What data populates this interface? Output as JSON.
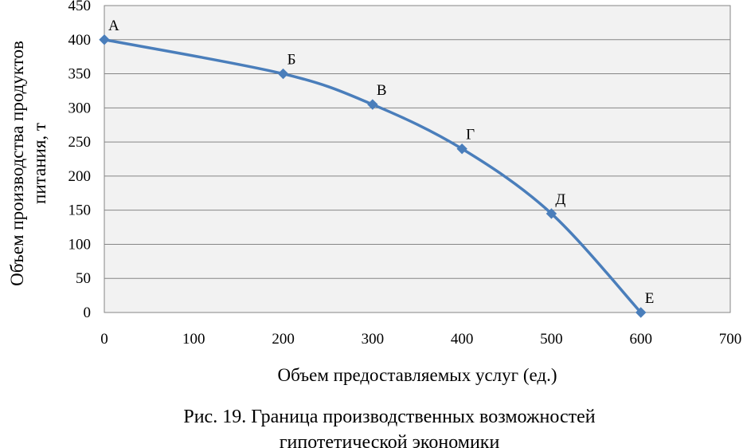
{
  "chart_data": {
    "type": "line",
    "smooth": true,
    "x": [
      0,
      200,
      300,
      400,
      500,
      600
    ],
    "y": [
      400,
      350,
      305,
      240,
      145,
      0
    ],
    "point_labels": [
      "А",
      "Б",
      "В",
      "Г",
      "Д",
      "Е"
    ],
    "xlabel": "Объем предоставляемых услуг (ед.)",
    "ylabel_lines": [
      "Объем производства продуктов",
      "питания, т"
    ],
    "xlim": [
      0,
      700
    ],
    "ylim": [
      0,
      450
    ],
    "x_ticks": [
      0,
      100,
      200,
      300,
      400,
      500,
      600,
      700
    ],
    "y_ticks": [
      0,
      50,
      100,
      150,
      200,
      250,
      300,
      350,
      400,
      450
    ],
    "grid": "horizontal",
    "legend": "none",
    "colors": {
      "line": "#4a7ebb",
      "marker": "#4a7ebb",
      "plot_background": "#f2f2f2",
      "grid": "#868686"
    }
  },
  "caption": {
    "line1": "Рис. 19. Граница производственных возможностей",
    "line2": "гипотетической экономики"
  }
}
